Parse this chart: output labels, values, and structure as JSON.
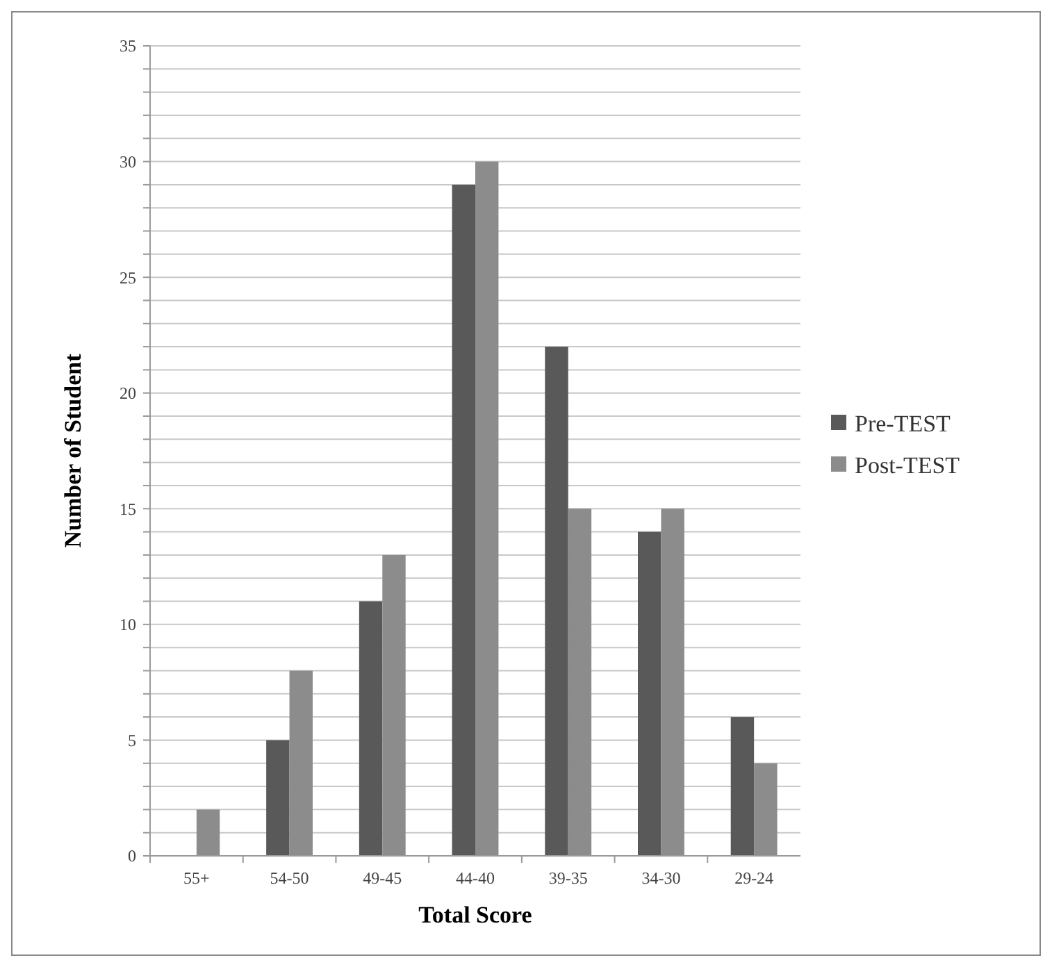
{
  "chart_data": {
    "type": "bar",
    "xlabel": "Total Score",
    "ylabel": "Number of Student",
    "categories": [
      "55+",
      "54-50",
      "49-45",
      "44-40",
      "39-35",
      "34-30",
      "29-24"
    ],
    "series": [
      {
        "name": "Pre-TEST",
        "color": "#595959",
        "values": [
          0,
          5,
          11,
          29,
          22,
          14,
          6
        ]
      },
      {
        "name": "Post-TEST",
        "color": "#8c8c8c",
        "values": [
          2,
          8,
          13,
          30,
          15,
          15,
          4
        ]
      }
    ],
    "ylim": [
      0,
      35
    ],
    "yticks": [
      0,
      {
        "value": 1,
        "label": null
      },
      {
        "value": 2,
        "label": null
      },
      {
        "value": 3,
        "label": null
      },
      {
        "value": 4,
        "label": null
      },
      5,
      {
        "value": 6,
        "label": null
      },
      {
        "value": 7,
        "label": null
      },
      {
        "value": 8,
        "label": null
      },
      {
        "value": 9,
        "label": null
      },
      10,
      {
        "value": 11,
        "label": null
      },
      {
        "value": 12,
        "label": null
      },
      {
        "value": 13,
        "label": null
      },
      {
        "value": 14,
        "label": null
      },
      15,
      {
        "value": 16,
        "label": null
      },
      {
        "value": 17,
        "label": null
      },
      {
        "value": 18,
        "label": null
      },
      {
        "value": 19,
        "label": null
      },
      20,
      {
        "value": 21,
        "label": null
      },
      {
        "value": 22,
        "label": null
      },
      {
        "value": 23,
        "label": null
      },
      {
        "value": 24,
        "label": null
      },
      25,
      {
        "value": 26,
        "label": null
      },
      {
        "value": 27,
        "label": null
      },
      {
        "value": 28,
        "label": null
      },
      {
        "value": 29,
        "label": null
      },
      30,
      {
        "value": 31,
        "label": null
      },
      {
        "value": 32,
        "label": null
      },
      {
        "value": 33,
        "label": null
      },
      {
        "value": 34,
        "label": null
      },
      35
    ],
    "grid": "y",
    "legend": "right"
  }
}
